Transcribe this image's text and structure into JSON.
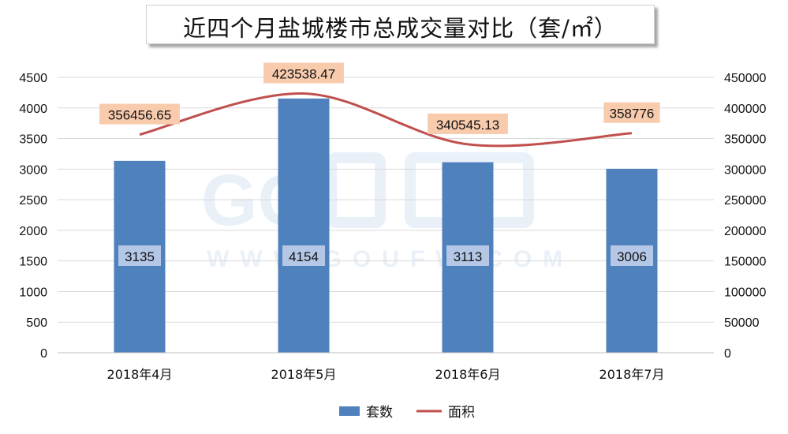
{
  "chart_data": {
    "type": "bar",
    "title": "近四个月盐城楼市总成交量对比（套/㎡）",
    "categories": [
      "2018年4月",
      "2018年5月",
      "2018年6月",
      "2018年7月"
    ],
    "series": [
      {
        "name": "套数",
        "type": "bar",
        "axis": "left",
        "values": [
          3135,
          4154,
          3113,
          3006
        ],
        "color": "#4f81bd"
      },
      {
        "name": "面积",
        "type": "line",
        "axis": "right",
        "values": [
          356456.65,
          423538.47,
          340545.13,
          358776
        ],
        "color": "#c0504d"
      }
    ],
    "data_labels": {
      "bars": [
        "3135",
        "4154",
        "3113",
        "3006"
      ],
      "line": [
        "356456.65",
        "423538.47",
        "340545.13",
        "358776"
      ]
    },
    "y_left": {
      "min": 0,
      "max": 4500,
      "step": 500,
      "ticks": [
        "0",
        "500",
        "1000",
        "1500",
        "2000",
        "2500",
        "3000",
        "3500",
        "4000",
        "4500"
      ]
    },
    "y_right": {
      "min": 0,
      "max": 450000,
      "step": 50000,
      "ticks": [
        "0",
        "50000",
        "100000",
        "150000",
        "200000",
        "250000",
        "300000",
        "350000",
        "400000",
        "450000"
      ]
    },
    "grid": true,
    "legend_position": "bottom",
    "watermark": "GO房网 WWW.GOUFW.COM"
  }
}
